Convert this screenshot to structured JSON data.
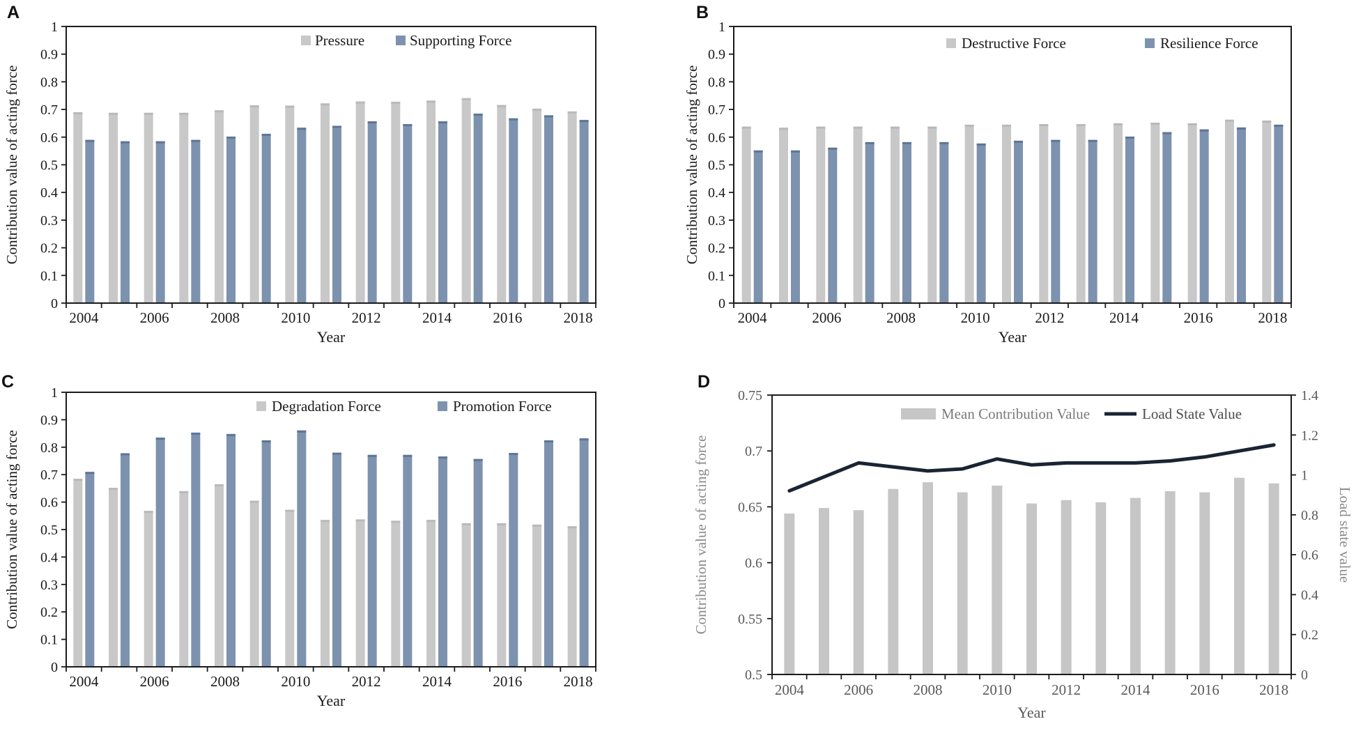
{
  "figure": {
    "x_axis_title": "Year",
    "acting_force_axis_title": "Contribution  value of acting force",
    "load_state_axis_title": "Load state value"
  },
  "chart_data": [
    {
      "panel_label": "A",
      "type": "bar",
      "categories": [
        2004,
        2005,
        2006,
        2007,
        2008,
        2009,
        2010,
        2011,
        2012,
        2013,
        2014,
        2015,
        2016,
        2017,
        2018
      ],
      "series": [
        {
          "name": "Pressure",
          "color": "#c8c8c8",
          "cap_color": "#b9b9b9",
          "values": [
            0.69,
            0.688,
            0.688,
            0.688,
            0.697,
            0.715,
            0.714,
            0.722,
            0.729,
            0.728,
            0.732,
            0.741,
            0.716,
            0.703,
            0.693
          ]
        },
        {
          "name": "Supporting Force",
          "color": "#7d92ae",
          "cap_color": "#5e7697",
          "values": [
            0.59,
            0.585,
            0.585,
            0.59,
            0.602,
            0.612,
            0.634,
            0.641,
            0.657,
            0.647,
            0.657,
            0.685,
            0.668,
            0.679,
            0.662
          ]
        }
      ],
      "title": "",
      "xlabel": "Year",
      "ylabel": "Contribution  value of acting force",
      "ylim": [
        0,
        1
      ],
      "yticks": [
        0,
        0.1,
        0.2,
        0.3,
        0.4,
        0.5,
        0.6,
        0.7,
        0.8,
        0.9,
        1
      ],
      "ytick_labels": [
        "0",
        "0.1",
        "0.2",
        "0.3",
        "0.4",
        "0.5",
        "0.6",
        "0.7",
        "0.8",
        "0.9",
        "1"
      ],
      "xtick_indices": [
        0,
        2,
        4,
        6,
        8,
        10,
        12,
        14
      ],
      "xtick_labels": [
        "2004",
        "2006",
        "2008",
        "2010",
        "2012",
        "2014",
        "2016",
        "2018"
      ],
      "grid": false,
      "legend_position": "top-right-inside"
    },
    {
      "panel_label": "B",
      "type": "bar",
      "categories": [
        2004,
        2005,
        2006,
        2007,
        2008,
        2009,
        2010,
        2011,
        2012,
        2013,
        2014,
        2015,
        2016,
        2017,
        2018
      ],
      "series": [
        {
          "name": "Destructive Force",
          "color": "#c8c8c8",
          "cap_color": "#b9b9b9",
          "values": [
            0.638,
            0.634,
            0.638,
            0.638,
            0.638,
            0.638,
            0.645,
            0.645,
            0.647,
            0.647,
            0.65,
            0.652,
            0.65,
            0.663,
            0.66
          ]
        },
        {
          "name": "Resilience Force",
          "color": "#7d92ae",
          "cap_color": "#5e7697",
          "values": [
            0.552,
            0.552,
            0.562,
            0.582,
            0.582,
            0.582,
            0.577,
            0.587,
            0.59,
            0.59,
            0.602,
            0.618,
            0.628,
            0.635,
            0.645
          ]
        }
      ],
      "title": "",
      "xlabel": "Year",
      "ylabel": "Contribution  value of acting force",
      "ylim": [
        0,
        1
      ],
      "yticks": [
        0,
        0.1,
        0.2,
        0.3,
        0.4,
        0.5,
        0.6,
        0.7,
        0.8,
        0.9,
        1
      ],
      "ytick_labels": [
        "0",
        "0.1",
        "0.2",
        "0.3",
        "0.4",
        "0.5",
        "0.6",
        "0.7",
        "0.8",
        "0.9",
        "1"
      ],
      "xtick_indices": [
        0,
        2,
        4,
        6,
        8,
        10,
        12,
        14
      ],
      "xtick_labels": [
        "2004",
        "2006",
        "2008",
        "2010",
        "2012",
        "2014",
        "2016",
        "2018"
      ],
      "grid": false,
      "legend_position": "top-right-inside"
    },
    {
      "panel_label": "C",
      "type": "bar",
      "categories": [
        2004,
        2005,
        2006,
        2007,
        2008,
        2009,
        2010,
        2011,
        2012,
        2013,
        2014,
        2015,
        2016,
        2017,
        2018
      ],
      "series": [
        {
          "name": "Degradation Force",
          "color": "#c8c8c8",
          "cap_color": "#b9b9b9",
          "values": [
            0.685,
            0.652,
            0.568,
            0.64,
            0.665,
            0.605,
            0.572,
            0.535,
            0.537,
            0.532,
            0.535,
            0.523,
            0.523,
            0.518,
            0.512
          ]
        },
        {
          "name": "Promotion Force",
          "color": "#7d92ae",
          "cap_color": "#5e7697",
          "values": [
            0.71,
            0.778,
            0.835,
            0.853,
            0.848,
            0.825,
            0.861,
            0.78,
            0.772,
            0.772,
            0.766,
            0.757,
            0.779,
            0.825,
            0.832
          ]
        }
      ],
      "title": "",
      "xlabel": "Year",
      "ylabel": "Contribution  value of acting force",
      "ylim": [
        0,
        1
      ],
      "yticks": [
        0,
        0.1,
        0.2,
        0.3,
        0.4,
        0.5,
        0.6,
        0.7,
        0.8,
        0.9,
        1
      ],
      "ytick_labels": [
        "0",
        "0.1",
        "0.2",
        "0.3",
        "0.4",
        "0.5",
        "0.6",
        "0.7",
        "0.8",
        "0.9",
        "1"
      ],
      "xtick_indices": [
        0,
        2,
        4,
        6,
        8,
        10,
        12,
        14
      ],
      "xtick_labels": [
        "2004",
        "2006",
        "2008",
        "2010",
        "2012",
        "2014",
        "2016",
        "2018"
      ],
      "grid": false,
      "legend_position": "top-right-inside"
    },
    {
      "panel_label": "D",
      "type": "bar+line",
      "categories": [
        2004,
        2005,
        2006,
        2007,
        2008,
        2009,
        2010,
        2011,
        2012,
        2013,
        2014,
        2015,
        2016,
        2017,
        2018
      ],
      "bar_series": {
        "name": "Mean Contribution Value",
        "color": "#c6c6c6",
        "axis": "left",
        "values": [
          0.644,
          0.649,
          0.647,
          0.666,
          0.672,
          0.663,
          0.669,
          0.653,
          0.656,
          0.654,
          0.658,
          0.664,
          0.663,
          0.676,
          0.671
        ]
      },
      "line_series": {
        "name": "Load State Value",
        "color": "#1a2433",
        "axis": "right",
        "values": [
          0.92,
          0.99,
          1.06,
          1.04,
          1.02,
          1.03,
          1.08,
          1.05,
          1.06,
          1.06,
          1.06,
          1.07,
          1.09,
          1.12,
          1.15
        ]
      },
      "title": "",
      "xlabel": "Year",
      "ylabel_left": "Contribution  value of acting force",
      "ylabel_right": "Load state value",
      "ylim_left": [
        0.5,
        0.75
      ],
      "yticks_left": [
        0.5,
        0.55,
        0.6,
        0.65,
        0.7,
        0.75
      ],
      "ytick_labels_left": [
        "0.5",
        "0.55",
        "0.6",
        "0.65",
        "0.7",
        "0.75"
      ],
      "ylim_right": [
        0,
        1.4
      ],
      "yticks_right": [
        0,
        0.2,
        0.4,
        0.6,
        0.8,
        1,
        1.2,
        1.4
      ],
      "ytick_labels_right": [
        "0",
        "0.2",
        "0.4",
        "0.6",
        "0.8",
        "1",
        "1.2",
        "1.4"
      ],
      "xtick_indices": [
        0,
        2,
        4,
        6,
        8,
        10,
        12,
        14
      ],
      "xtick_labels": [
        "2004",
        "2006",
        "2008",
        "2010",
        "2012",
        "2014",
        "2016",
        "2018"
      ],
      "grid": false,
      "legend_position": "top-inside",
      "text_color": "#595959",
      "title_color": "#8a8a8a",
      "legend_text_colors": [
        "#7a7a7a",
        "#4d4d4d"
      ]
    }
  ]
}
